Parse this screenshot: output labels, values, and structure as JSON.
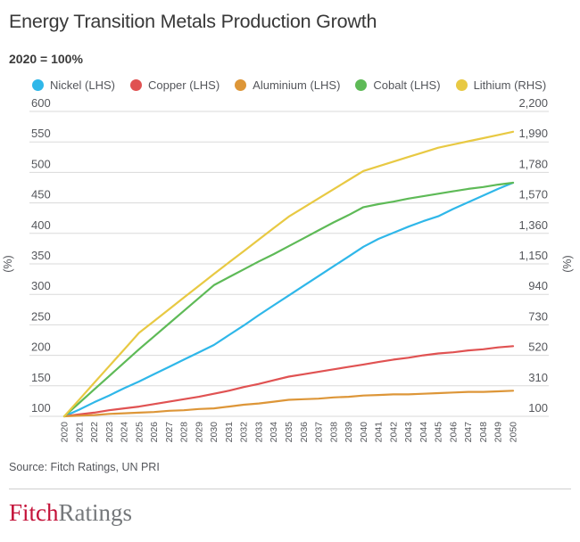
{
  "chart_data": {
    "type": "line",
    "title": "Energy Transition Metals Production Growth",
    "subtitle": "2020 = 100%",
    "legend_position": "top",
    "grid": true,
    "grid_color": "#dadada",
    "x": [
      "2020",
      "2021",
      "2022",
      "2023",
      "2024",
      "2025",
      "2026",
      "2027",
      "2028",
      "2029",
      "2030",
      "2031",
      "2032",
      "2033",
      "2034",
      "2035",
      "2036",
      "2037",
      "2038",
      "2039",
      "2040",
      "2041",
      "2042",
      "2043",
      "2044",
      "2045",
      "2046",
      "2047",
      "2048",
      "2049",
      "2050"
    ],
    "series": [
      {
        "name": "Nickel (LHS)",
        "axis": "left",
        "color": "#2fb7e9",
        "values": [
          100,
          111,
          123,
          134,
          146,
          157,
          169,
          181,
          193,
          205,
          217,
          233,
          249,
          266,
          282,
          298,
          314,
          330,
          346,
          362,
          378,
          391,
          401,
          411,
          420,
          428,
          440,
          451,
          462,
          473,
          483
        ]
      },
      {
        "name": "Copper (LHS)",
        "axis": "left",
        "color": "#e05252",
        "values": [
          100,
          103,
          106,
          110,
          113,
          116,
          120,
          124,
          128,
          132,
          137,
          142,
          148,
          153,
          159,
          165,
          169,
          173,
          177,
          181,
          185,
          189,
          193,
          196,
          200,
          203,
          205,
          208,
          210,
          213,
          215
        ]
      },
      {
        "name": "Aluminium (LHS)",
        "axis": "left",
        "color": "#dd9638",
        "values": [
          100,
          101,
          102,
          104,
          105,
          106,
          107,
          109,
          110,
          112,
          113,
          116,
          119,
          121,
          124,
          127,
          128,
          129,
          131,
          132,
          134,
          135,
          136,
          136,
          137,
          138,
          139,
          140,
          140,
          141,
          142
        ]
      },
      {
        "name": "Cobalt (LHS)",
        "axis": "left",
        "color": "#5eba57",
        "values": [
          100,
          122,
          144,
          166,
          188,
          210,
          231,
          252,
          273,
          294,
          315,
          328,
          341,
          354,
          366,
          379,
          392,
          405,
          418,
          430,
          443,
          448,
          452,
          457,
          461,
          465,
          469,
          473,
          476,
          480,
          483
        ]
      },
      {
        "name": "Lithium (RHS)",
        "axis": "right",
        "color": "#e8c943",
        "values": [
          100,
          215,
          330,
          445,
          560,
          675,
          756,
          837,
          918,
          999,
          1080,
          1159,
          1238,
          1317,
          1396,
          1475,
          1538,
          1601,
          1664,
          1727,
          1790,
          1822,
          1854,
          1886,
          1918,
          1950,
          1972,
          1994,
          2016,
          2038,
          2060
        ]
      }
    ],
    "left_axis": {
      "label": "(%)",
      "range": [
        100,
        600
      ],
      "ticks": [
        600,
        550,
        500,
        450,
        400,
        350,
        300,
        250,
        200,
        150,
        100
      ]
    },
    "right_axis": {
      "label": "(%)",
      "range": [
        100,
        2200
      ],
      "ticks": [
        "2,200",
        "1,990",
        "1,780",
        "1,570",
        "1,360",
        "1,150",
        "940",
        "730",
        "520",
        "310",
        "100"
      ]
    }
  },
  "source": "Source: Fitch Ratings, UN PRI",
  "logo": {
    "fitch": "Fitch",
    "ratings": "Ratings"
  }
}
